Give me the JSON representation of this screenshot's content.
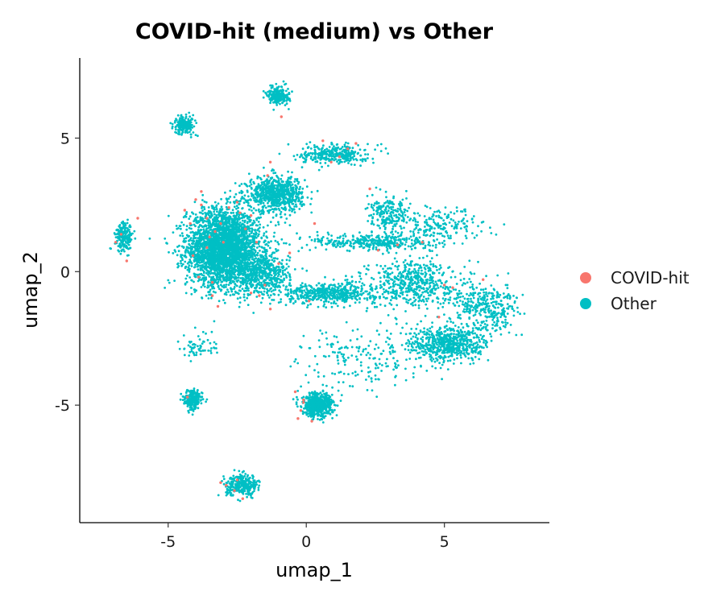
{
  "chart_data": {
    "type": "scatter",
    "title": "COVID-hit (medium) vs Other",
    "xlabel": "umap_1",
    "ylabel": "umap_2",
    "xlim": [
      -8.2,
      8.8
    ],
    "ylim": [
      -9.4,
      8.0
    ],
    "x_ticks": [
      -5,
      0,
      5
    ],
    "x_tick_labels": [
      "-5",
      "0",
      "5"
    ],
    "y_ticks": [
      -5,
      0,
      5
    ],
    "y_tick_labels": [
      "-5",
      "0",
      "5"
    ],
    "grid": false,
    "legend_position": "right",
    "series": [
      {
        "name": "COVID-hit",
        "color": "#F8766D",
        "x": [
          -6.7,
          -6.9,
          -6.5,
          -6.1,
          -4.4,
          -4.2,
          -4.0,
          -3.8,
          -3.6,
          -3.5,
          -3.3,
          -3.1,
          -3.0,
          -2.8,
          -2.5,
          -2.4,
          -2.2,
          -2.0,
          -1.8,
          -1.7,
          -1.3,
          -0.6,
          0.1,
          0.3,
          0.6,
          0.9,
          1.2,
          1.5,
          1.8,
          2.3,
          -1.3,
          -0.9,
          -0.4,
          -0.1,
          -0.2,
          -0.3,
          -0.1,
          0.2,
          -3.1,
          -2.9,
          -2.6,
          -2.5,
          -2.3,
          -3.4,
          -3.6,
          -3.9,
          -4.1,
          -2.0,
          -1.4,
          -1.0,
          4.2,
          4.8,
          5.0,
          5.3,
          6.4,
          3.3,
          2.6,
          -4.3,
          -3.4,
          -1.5,
          -3.8,
          -3.2
        ],
        "y": [
          1.4,
          1.1,
          0.4,
          2.0,
          2.3,
          1.8,
          2.7,
          2.5,
          2.0,
          1.3,
          1.5,
          1.8,
          1.1,
          2.4,
          2.6,
          2.2,
          1.6,
          2.1,
          1.1,
          -0.9,
          -1.4,
          0.7,
          -1.1,
          1.8,
          4.9,
          4.1,
          4.3,
          4.6,
          4.8,
          3.1,
          4.1,
          5.8,
          -4.5,
          -4.9,
          -5.2,
          -5.5,
          -4.8,
          -5.6,
          -7.9,
          -8.0,
          -8.2,
          -7.8,
          -8.5,
          -0.4,
          0.9,
          -0.2,
          0.6,
          -0.8,
          3.6,
          0.3,
          1.1,
          -1.7,
          -0.5,
          -0.6,
          -0.3,
          1.0,
          0.8,
          -4.7,
          -0.9,
          -0.5,
          3.0,
          -1.3
        ],
        "n": 62
      },
      {
        "name": "Other",
        "color": "#00BFC4",
        "clusters": [
          {
            "center": [
              -3.0,
              0.9
            ],
            "spread": [
              1.2,
              1.3
            ],
            "n": 3000
          },
          {
            "center": [
              -1.1,
              2.9
            ],
            "spread": [
              0.9,
              0.6
            ],
            "n": 700
          },
          {
            "center": [
              -1.6,
              -0.1
            ],
            "spread": [
              0.9,
              0.7
            ],
            "n": 500
          },
          {
            "center": [
              0.8,
              -0.8
            ],
            "spread": [
              1.6,
              0.35
            ],
            "n": 500
          },
          {
            "center": [
              2.4,
              1.1
            ],
            "spread": [
              2.0,
              0.3
            ],
            "n": 350
          },
          {
            "center": [
              3.8,
              -0.4
            ],
            "spread": [
              1.4,
              0.8
            ],
            "n": 500
          },
          {
            "center": [
              5.2,
              -2.7
            ],
            "spread": [
              1.3,
              0.6
            ],
            "n": 600
          },
          {
            "center": [
              6.5,
              -1.3
            ],
            "spread": [
              1.2,
              0.8
            ],
            "n": 350
          },
          {
            "center": [
              3.0,
              2.1
            ],
            "spread": [
              0.7,
              0.6
            ],
            "n": 200
          },
          {
            "center": [
              1.0,
              4.4
            ],
            "spread": [
              1.1,
              0.35
            ],
            "n": 300
          },
          {
            "center": [
              -1.0,
              6.6
            ],
            "spread": [
              0.35,
              0.3
            ],
            "n": 220
          },
          {
            "center": [
              -4.4,
              5.5
            ],
            "spread": [
              0.35,
              0.3
            ],
            "n": 200
          },
          {
            "center": [
              -6.6,
              1.3
            ],
            "spread": [
              0.28,
              0.5
            ],
            "n": 200
          },
          {
            "center": [
              -4.1,
              -4.8
            ],
            "spread": [
              0.3,
              0.35
            ],
            "n": 220
          },
          {
            "center": [
              0.4,
              -5.0
            ],
            "spread": [
              0.5,
              0.4
            ],
            "n": 550
          },
          {
            "center": [
              -2.3,
              -8.0
            ],
            "spread": [
              0.55,
              0.35
            ],
            "n": 300
          },
          {
            "center": [
              2.2,
              -3.2
            ],
            "spread": [
              2.2,
              1.0
            ],
            "n": 200
          },
          {
            "center": [
              -3.9,
              -2.8
            ],
            "spread": [
              0.6,
              0.5
            ],
            "n": 60
          },
          {
            "center": [
              4.8,
              1.7
            ],
            "spread": [
              1.5,
              0.6
            ],
            "n": 200
          }
        ]
      }
    ]
  }
}
